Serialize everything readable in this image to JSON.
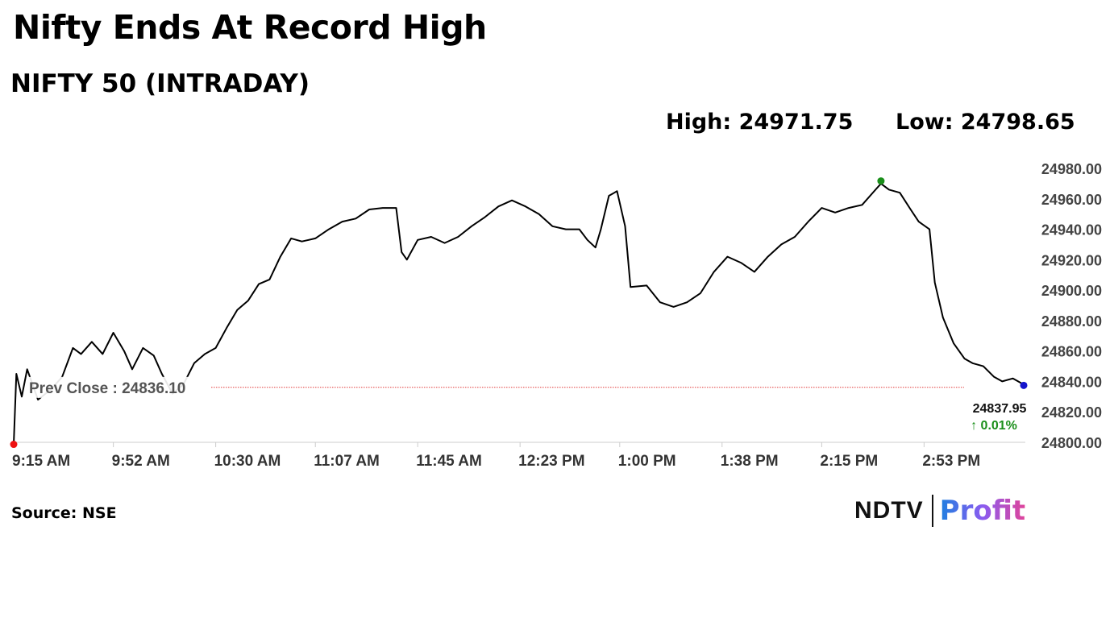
{
  "headline": "Nifty Ends At Record High",
  "chart_data": {
    "type": "line",
    "title": "NIFTY 50 (INTRADAY)",
    "high_label": "High: 24971.75",
    "low_label": "Low: 24798.65",
    "prev_close_label": "Prev Close : 24836.10",
    "prev_close": 24836.1,
    "last_value_label": "24837.95",
    "change_label": "↑ 0.01%",
    "high": 24971.75,
    "low": 24798.65,
    "ylim": [
      24800,
      24980
    ],
    "y_ticks": [
      "24980.00",
      "24960.00",
      "24940.00",
      "24920.00",
      "24900.00",
      "24880.00",
      "24860.00",
      "24840.00",
      "24820.00",
      "24800.00"
    ],
    "x_tick_labels": [
      "9:15 AM",
      "9:52 AM",
      "10:30 AM",
      "11:07 AM",
      "11:45 AM",
      "12:23 PM",
      "1:00 PM",
      "1:38 PM",
      "2:15 PM",
      "2:53 PM"
    ],
    "grid": false,
    "series": [
      {
        "color": "#000000",
        "points": [
          [
            "9:15 AM",
            24798.65
          ],
          [
            "9:16 AM",
            24845
          ],
          [
            "9:18 AM",
            24830
          ],
          [
            "9:20 AM",
            24848
          ],
          [
            "9:24 AM",
            24828
          ],
          [
            "9:29 AM",
            24835
          ],
          [
            "9:33 AM",
            24843
          ],
          [
            "9:37 AM",
            24862
          ],
          [
            "9:40 AM",
            24858
          ],
          [
            "9:44 AM",
            24866
          ],
          [
            "9:48 AM",
            24858
          ],
          [
            "9:52 AM",
            24872
          ],
          [
            "9:56 AM",
            24860
          ],
          [
            "9:59 AM",
            24848
          ],
          [
            "10:03 AM",
            24862
          ],
          [
            "10:07 AM",
            24857
          ],
          [
            "10:10 AM",
            24845
          ],
          [
            "10:14 AM",
            24832
          ],
          [
            "10:18 AM",
            24838
          ],
          [
            "10:22 AM",
            24852
          ],
          [
            "10:26 AM",
            24858
          ],
          [
            "10:30 AM",
            24862
          ],
          [
            "10:34 AM",
            24875
          ],
          [
            "10:38 AM",
            24887
          ],
          [
            "10:42 AM",
            24893
          ],
          [
            "10:46 AM",
            24904
          ],
          [
            "10:50 AM",
            24907
          ],
          [
            "10:54 AM",
            24922
          ],
          [
            "10:58 AM",
            24934
          ],
          [
            "11:02 AM",
            24932
          ],
          [
            "11:07 AM",
            24934
          ],
          [
            "11:12 AM",
            24940
          ],
          [
            "11:17 AM",
            24945
          ],
          [
            "11:22 AM",
            24947
          ],
          [
            "11:27 AM",
            24953
          ],
          [
            "11:32 AM",
            24954
          ],
          [
            "11:37 AM",
            24954
          ],
          [
            "11:39 AM",
            24925
          ],
          [
            "11:41 AM",
            24920
          ],
          [
            "11:45 AM",
            24933
          ],
          [
            "11:50 AM",
            24935
          ],
          [
            "11:55 AM",
            24931
          ],
          [
            "12:00 PM",
            24935
          ],
          [
            "12:05 PM",
            24942
          ],
          [
            "12:10 PM",
            24948
          ],
          [
            "12:15 PM",
            24955
          ],
          [
            "12:20 PM",
            24959
          ],
          [
            "12:25 PM",
            24955
          ],
          [
            "12:30 PM",
            24950
          ],
          [
            "12:35 PM",
            24942
          ],
          [
            "12:40 PM",
            24940
          ],
          [
            "12:45 PM",
            24940
          ],
          [
            "12:48 PM",
            24933
          ],
          [
            "12:51 PM",
            24928
          ],
          [
            "12:53 PM",
            24940
          ],
          [
            "12:56 PM",
            24962
          ],
          [
            "12:59 PM",
            24965
          ],
          [
            "1:02 PM",
            24942
          ],
          [
            "1:04 PM",
            24902
          ],
          [
            "1:10 PM",
            24903
          ],
          [
            "1:15 PM",
            24892
          ],
          [
            "1:20 PM",
            24889
          ],
          [
            "1:25 PM",
            24892
          ],
          [
            "1:30 PM",
            24898
          ],
          [
            "1:35 PM",
            24912
          ],
          [
            "1:40 PM",
            24922
          ],
          [
            "1:45 PM",
            24918
          ],
          [
            "1:50 PM",
            24912
          ],
          [
            "1:55 PM",
            24922
          ],
          [
            "2:00 PM",
            24930
          ],
          [
            "2:05 PM",
            24935
          ],
          [
            "2:10 PM",
            24945
          ],
          [
            "2:15 PM",
            24954
          ],
          [
            "2:20 PM",
            24951
          ],
          [
            "2:25 PM",
            24954
          ],
          [
            "2:30 PM",
            24956
          ],
          [
            "2:35 PM",
            24966
          ],
          [
            "2:37 PM",
            24970
          ],
          [
            "2:40 PM",
            24966
          ],
          [
            "2:44 PM",
            24964
          ],
          [
            "2:48 PM",
            24953
          ],
          [
            "2:51 PM",
            24945
          ],
          [
            "2:55 PM",
            24940
          ],
          [
            "2:57 PM",
            24905
          ],
          [
            "3:00 PM",
            24882
          ],
          [
            "3:04 PM",
            24865
          ],
          [
            "3:08 PM",
            24855
          ],
          [
            "3:11 PM",
            24852
          ],
          [
            "3:15 PM",
            24850
          ],
          [
            "3:19 PM",
            24843
          ],
          [
            "3:22 PM",
            24840
          ],
          [
            "3:26 PM",
            24842
          ],
          [
            "3:30 PM",
            24837.95
          ]
        ]
      }
    ],
    "colors": {
      "line": "#000000",
      "prev_close_line": "#e23a3a",
      "low_marker": "#ee1111",
      "high_marker": "#1a8f1a",
      "last_marker": "#1515cc",
      "change": "#1a8f1a",
      "axis": "#cccccc"
    }
  },
  "source": "Source: NSE",
  "logo": {
    "ndtv": "NDTV",
    "profit": "Profit"
  }
}
